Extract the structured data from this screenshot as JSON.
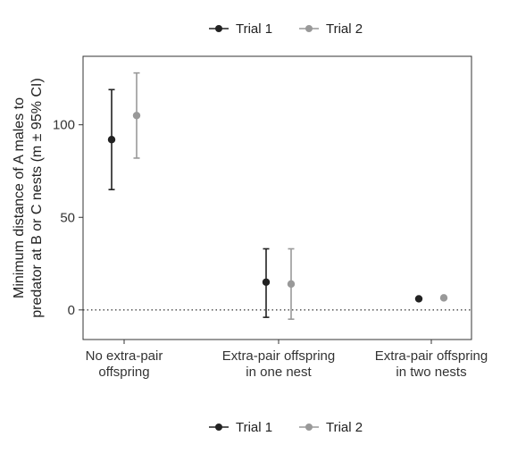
{
  "chart_data": {
    "type": "scatter",
    "subtype": "point-with-error-bars",
    "title": "",
    "xlabel": "",
    "ylabel_lines": [
      "Minimum distance of A males to",
      "predator at B or C nests (m ± 95% CI)"
    ],
    "categories": [
      [
        "No extra-pair",
        "offspring"
      ],
      [
        "Extra-pair offspring",
        "in one nest"
      ],
      [
        "Extra-pair offspring",
        "in two nests"
      ]
    ],
    "yticks": [
      0,
      50,
      100
    ],
    "ylim": [
      -16,
      137
    ],
    "reference_line": {
      "y": 0,
      "style": "dotted"
    },
    "grid": false,
    "legend": {
      "placement": "top and bottom",
      "entries": [
        "Trial 1",
        "Trial 2"
      ]
    },
    "series": [
      {
        "name": "Trial 1",
        "color": "#222222",
        "values": [
          92,
          15,
          6
        ],
        "ci_low": [
          65,
          -4,
          null
        ],
        "ci_high": [
          119,
          33,
          null
        ]
      },
      {
        "name": "Trial 2",
        "color": "#999999",
        "values": [
          105,
          14,
          6.5
        ],
        "ci_low": [
          82,
          -5,
          null
        ],
        "ci_high": [
          128,
          33,
          null
        ]
      }
    ]
  }
}
